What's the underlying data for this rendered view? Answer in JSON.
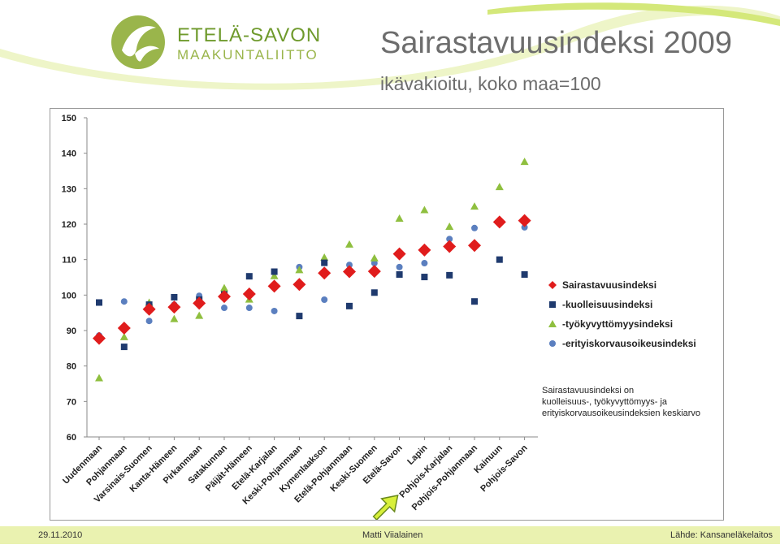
{
  "header": {
    "logo_line1": "ETELÄ-SAVON",
    "logo_line2": "MAAKUNTALIITTO",
    "title": "Sairastavuusindeksi 2009",
    "subtitle": "ikävakioitu,  koko maa=100"
  },
  "footer": {
    "date": "29.11.2010",
    "author": "Matti Viialainen",
    "source": "Lähde:  Kansaneläkelaitos"
  },
  "colors": {
    "sairastavuus": "#e01c1c",
    "kuolleisuus": "#1f3a6e",
    "tyokyvyttomyys": "#8fbf3f",
    "erityiskorvaus": "#5b7fbf",
    "accent_green": "#9ab54b",
    "arrow_fill": "#d8f03a"
  },
  "chart_data": {
    "type": "scatter",
    "ylim": [
      60,
      150
    ],
    "yticks": [
      60,
      70,
      80,
      90,
      100,
      110,
      120,
      130,
      140,
      150
    ],
    "grid": false,
    "legend_position": "right",
    "categories": [
      "Uudenmaan",
      "Pohjanmaan",
      "Varsinais-Suomen",
      "Kanta-Hämeen",
      "Pirkanmaan",
      "Satakunnan",
      "Päijät-Hämeen",
      "Etelä-Karjalan",
      "Keski-Pohjanmaan",
      "Kymenlaakson",
      "Etelä-Pohjanmaan",
      "Keski-Suomen",
      "Etelä-Savon",
      "Lapin",
      "Pohjois-Karjalan",
      "Pohjois-Pohjanmaan",
      "Kainuun",
      "Pohjois-Savon"
    ],
    "highlight_category": "Etelä-Savon",
    "series": [
      {
        "name": "Sairastavuusindeksi",
        "marker": "diamond",
        "values": [
          87.8,
          90.7,
          96.0,
          96.6,
          97.7,
          99.6,
          100.3,
          102.5,
          103.0,
          106.2,
          106.6,
          106.7,
          111.6,
          112.7,
          113.7,
          114.0,
          120.6,
          121.0
        ]
      },
      {
        "name": "-kuolleisuusindeksi",
        "marker": "square",
        "values": [
          97.9,
          85.4,
          97.3,
          99.4,
          98.7,
          100.2,
          105.3,
          106.6,
          94.1,
          109.1,
          96.9,
          100.7,
          105.8,
          105.1,
          105.6,
          98.2,
          110.0,
          105.8
        ]
      },
      {
        "name": "-työkyvyttömyysindeksi",
        "marker": "triangle",
        "values": [
          76.6,
          88.2,
          97.9,
          93.3,
          94.2,
          102.0,
          98.8,
          105.4,
          107.1,
          110.6,
          114.3,
          110.4,
          121.6,
          124.0,
          119.3,
          125.0,
          130.5,
          137.6
        ]
      },
      {
        "name": "-erityiskorvausoikeusindeksi",
        "marker": "circle",
        "values": [
          88.6,
          98.2,
          92.7,
          97.3,
          99.8,
          96.4,
          96.4,
          95.5,
          107.9,
          98.7,
          108.5,
          109.0,
          107.9,
          109.0,
          115.8,
          118.9,
          120.8,
          119.1
        ]
      }
    ],
    "annotation": [
      "Sairastavuusindeksi on",
      "kuolleisuus-, työkyvyttömyys- ja",
      "erityiskorvausoikeusindeksien keskiarvo"
    ]
  }
}
